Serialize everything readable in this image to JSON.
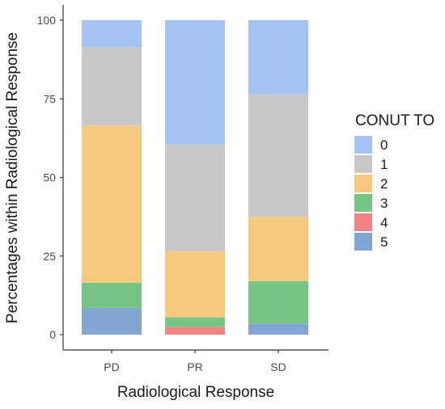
{
  "chart_data": {
    "type": "bar",
    "stacked": true,
    "xlabel": "Radiological Response",
    "ylabel": "Percentages within Radiological Response",
    "ylim": [
      0,
      100
    ],
    "yticks": [
      0,
      25,
      50,
      75,
      100
    ],
    "categories": [
      "PD",
      "PR",
      "SD"
    ],
    "legend": {
      "title": "CONUT TO",
      "position": "right"
    },
    "series": [
      {
        "name": "5",
        "color": "#82a6d2",
        "values": [
          8.5,
          0,
          3.5
        ]
      },
      {
        "name": "4",
        "color": "#ef8585",
        "values": [
          0,
          2.5,
          0
        ]
      },
      {
        "name": "3",
        "color": "#77c583",
        "values": [
          8.0,
          3.0,
          13.5
        ]
      },
      {
        "name": "2",
        "color": "#f5c97e",
        "values": [
          50.0,
          21.0,
          20.5
        ]
      },
      {
        "name": "1",
        "color": "#c8c8c8",
        "values": [
          25.0,
          34.0,
          39.0
        ]
      },
      {
        "name": "0",
        "color": "#a3c4f3",
        "values": [
          8.5,
          39.5,
          23.5
        ]
      }
    ],
    "legend_order": [
      "0",
      "1",
      "2",
      "3",
      "4",
      "5"
    ],
    "grid": false
  }
}
